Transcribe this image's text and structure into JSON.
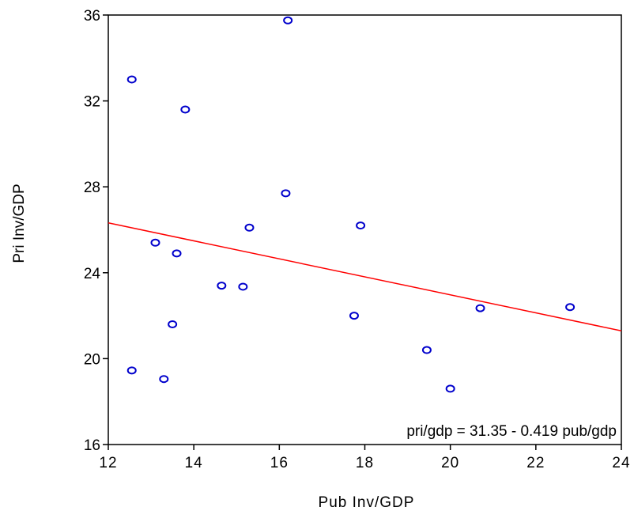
{
  "chart_data": {
    "type": "scatter",
    "xlabel": "Pub Inv/GDP",
    "ylabel": "Pri Inv/GDP",
    "xlim": [
      12,
      24
    ],
    "ylim": [
      16,
      36
    ],
    "xticks": [
      12,
      14,
      16,
      18,
      20,
      22,
      24
    ],
    "yticks": [
      16,
      20,
      24,
      28,
      32,
      36
    ],
    "x_tick_labels": [
      "12",
      "14",
      "16",
      "18",
      "20",
      "22",
      "24"
    ],
    "y_tick_labels": [
      "16",
      "20",
      "24",
      "28",
      "32",
      "36"
    ],
    "points": [
      {
        "x": 12.55,
        "y": 33.0
      },
      {
        "x": 13.8,
        "y": 31.6
      },
      {
        "x": 16.2,
        "y": 35.75
      },
      {
        "x": 16.15,
        "y": 27.7
      },
      {
        "x": 15.3,
        "y": 26.1
      },
      {
        "x": 17.9,
        "y": 26.2
      },
      {
        "x": 13.1,
        "y": 25.4
      },
      {
        "x": 13.6,
        "y": 24.9
      },
      {
        "x": 14.65,
        "y": 23.4
      },
      {
        "x": 15.15,
        "y": 23.35
      },
      {
        "x": 13.5,
        "y": 21.6
      },
      {
        "x": 17.75,
        "y": 22.0
      },
      {
        "x": 20.7,
        "y": 22.35
      },
      {
        "x": 22.8,
        "y": 22.4
      },
      {
        "x": 19.45,
        "y": 20.4
      },
      {
        "x": 12.55,
        "y": 19.45
      },
      {
        "x": 13.3,
        "y": 19.05
      },
      {
        "x": 20.0,
        "y": 18.6
      }
    ],
    "fit_line": {
      "intercept": 31.35,
      "slope": -0.419
    },
    "annotation": "pri/gdp = 31.35 - 0.419 pub/gdp",
    "colors": {
      "points": "#0000cc",
      "fit_line": "#ff0000",
      "axes": "#000000"
    },
    "grid": false,
    "legend": "none"
  }
}
